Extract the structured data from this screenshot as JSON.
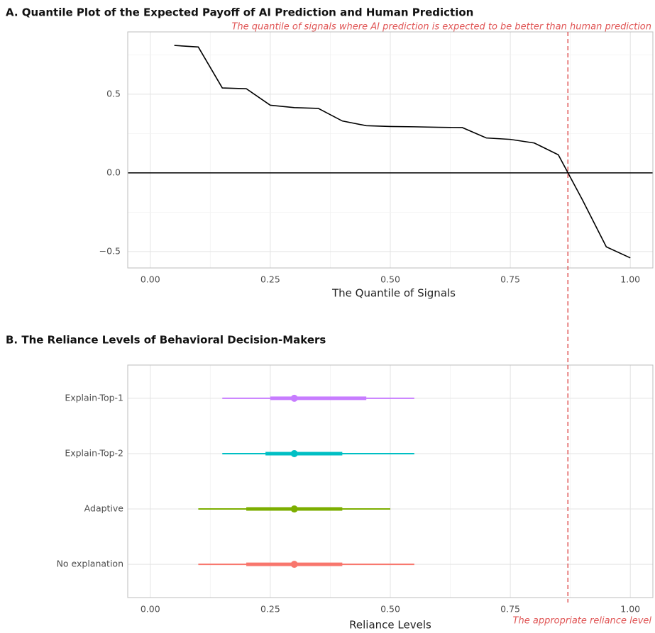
{
  "chart_data": [
    {
      "type": "line",
      "title": "A. Quantile Plot of the Expected Payoff of AI Prediction and Human Prediction",
      "annotation": "The quantile of signals where AI prediction is expected to be better than human prediction",
      "xlabel": "The Quantile of Signals",
      "x": [
        0.05,
        0.1,
        0.15,
        0.2,
        0.25,
        0.3,
        0.35,
        0.4,
        0.45,
        0.5,
        0.55,
        0.6,
        0.65,
        0.7,
        0.75,
        0.8,
        0.85,
        0.9,
        0.95,
        1.0
      ],
      "series": [
        {
          "color": "#000000",
          "values": [
            0.81,
            0.8,
            0.54,
            0.535,
            0.43,
            0.415,
            0.41,
            0.33,
            0.3,
            0.295,
            0.293,
            0.29,
            0.288,
            0.222,
            0.213,
            0.19,
            0.115,
            -0.17,
            -0.47,
            -0.54
          ]
        }
      ],
      "xlim": [
        -0.047,
        1.047
      ],
      "ylim": [
        -0.604,
        0.896
      ],
      "xticks": [
        {
          "value": 0,
          "label": "0.00"
        },
        {
          "value": 0.25,
          "label": "0.25"
        },
        {
          "value": 0.5,
          "label": "0.50"
        },
        {
          "value": 0.75,
          "label": "0.75"
        },
        {
          "value": 1,
          "label": "1.00"
        }
      ],
      "yticks": [
        {
          "value": -0.5,
          "label": "−0.5"
        },
        {
          "value": 0,
          "label": "0.0"
        },
        {
          "value": 0.5,
          "label": "0.5"
        }
      ],
      "minor_xticks": [
        0.125,
        0.375,
        0.625,
        0.875
      ],
      "minor_yticks": [
        -0.25,
        0.25,
        0.75
      ],
      "hline": 0,
      "vline": 0.87,
      "vline_color": "#e05555",
      "grid": true
    },
    {
      "type": "interval",
      "title": "B. The Reliance Levels of Behavioral Decision-Makers",
      "annotation": "The appropriate reliance level",
      "xlabel": "Reliance Levels",
      "categories": [
        "No explanation",
        "Adaptive",
        "Explain-Top-2",
        "Explain-Top-1"
      ],
      "colors": [
        "#f8766d",
        "#7cae00",
        "#00bfc4",
        "#c77cff"
      ],
      "values": [
        0.3,
        0.3,
        0.3,
        0.3
      ],
      "inner_low": [
        0.2,
        0.2,
        0.24,
        0.25
      ],
      "inner_high": [
        0.4,
        0.4,
        0.4,
        0.45
      ],
      "outer_low": [
        0.1,
        0.1,
        0.15,
        0.15
      ],
      "outer_high": [
        0.55,
        0.5,
        0.55,
        0.55
      ],
      "xlim": [
        -0.047,
        1.047
      ],
      "xticks": [
        {
          "value": 0,
          "label": "0.00"
        },
        {
          "value": 0.25,
          "label": "0.25"
        },
        {
          "value": 0.5,
          "label": "0.50"
        },
        {
          "value": 0.75,
          "label": "0.75"
        },
        {
          "value": 1,
          "label": "1.00"
        }
      ],
      "minor_xticks": [
        0.125,
        0.375,
        0.625,
        0.875
      ],
      "vline": 0.87,
      "vline_color": "#e05555",
      "grid": true
    }
  ]
}
